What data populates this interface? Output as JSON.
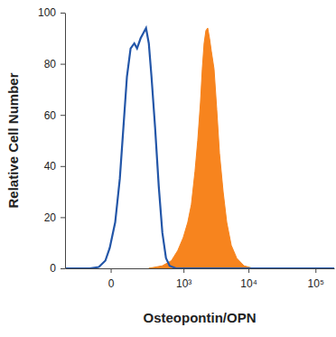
{
  "chart_data": {
    "type": "line",
    "x_label": "Osteopontin/OPN",
    "y_label": "Relative Cell Number",
    "xlim": [
      -340,
      190000
    ],
    "ylim": [
      0,
      100
    ],
    "xticks": [
      0,
      {
        "value": 1000,
        "label": "10³"
      },
      {
        "value": 10000,
        "label": "10⁴"
      },
      {
        "value": 100000,
        "label": "10⁵"
      }
    ],
    "yticks": [
      0,
      20,
      40,
      60,
      80,
      100
    ],
    "log": "x",
    "series": [
      {
        "type": "line",
        "color": "#2356a8",
        "x": [
          -340,
          -94,
          -45,
          -18,
          -3,
          15,
          33,
          49,
          67,
          88,
          112,
          132,
          161,
          185,
          212,
          242,
          274,
          322,
          377,
          438,
          508,
          588,
          752,
          190000
        ],
        "values": [
          0,
          0,
          0.5,
          3,
          8,
          18,
          35,
          55,
          75,
          86,
          88,
          86,
          90,
          92,
          94,
          88,
          75,
          55,
          32,
          14,
          4,
          1,
          0,
          0
        ]
      },
      {
        "type": "area",
        "color": "#f7841e",
        "x": [
          242,
          438,
          631,
          806,
          989,
          1171,
          1337,
          1526,
          1684,
          1858,
          1983,
          2116,
          2257,
          2407,
          2567,
          2736,
          3012,
          3317,
          3650,
          4145,
          4703,
          5506,
          6656,
          8555,
          11709
        ],
        "values": [
          0,
          1,
          3,
          7,
          12,
          18,
          25,
          38,
          50,
          65,
          78,
          88,
          93,
          94,
          90,
          85,
          78,
          62,
          45,
          30,
          18,
          9,
          4,
          1,
          0
        ]
      }
    ]
  }
}
